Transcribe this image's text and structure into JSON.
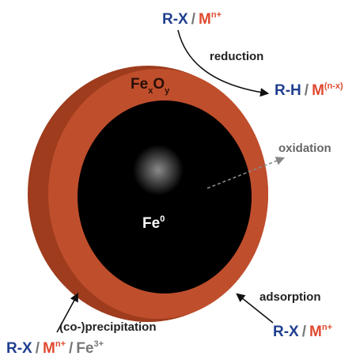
{
  "top_reactant": {
    "rx": "R-X",
    "sep": "/",
    "m": "M",
    "m_sup": "n+"
  },
  "reduction_label": "reduction",
  "top_product": {
    "rh": "R-H",
    "sep": "/",
    "m": "M",
    "m_sup": "(n-x)"
  },
  "shell_label": {
    "fe": "Fe",
    "x": "x",
    "o": "O",
    "y": "y"
  },
  "oxidation_label": "oxidation",
  "core_label": {
    "fe": "Fe",
    "sup": "0"
  },
  "adsorption_label": "adsorption",
  "right_reactant": {
    "rx": "R-X",
    "sep": "/",
    "m": "M",
    "m_sup": "n+"
  },
  "coprecipitation_label": "(co-)precipitation",
  "left_reactant": {
    "rx": "R-X",
    "sep1": "/",
    "m": "M",
    "m_sup": "n+",
    "sep2": "/",
    "fe": "Fe",
    "fe_sup": "3+"
  }
}
